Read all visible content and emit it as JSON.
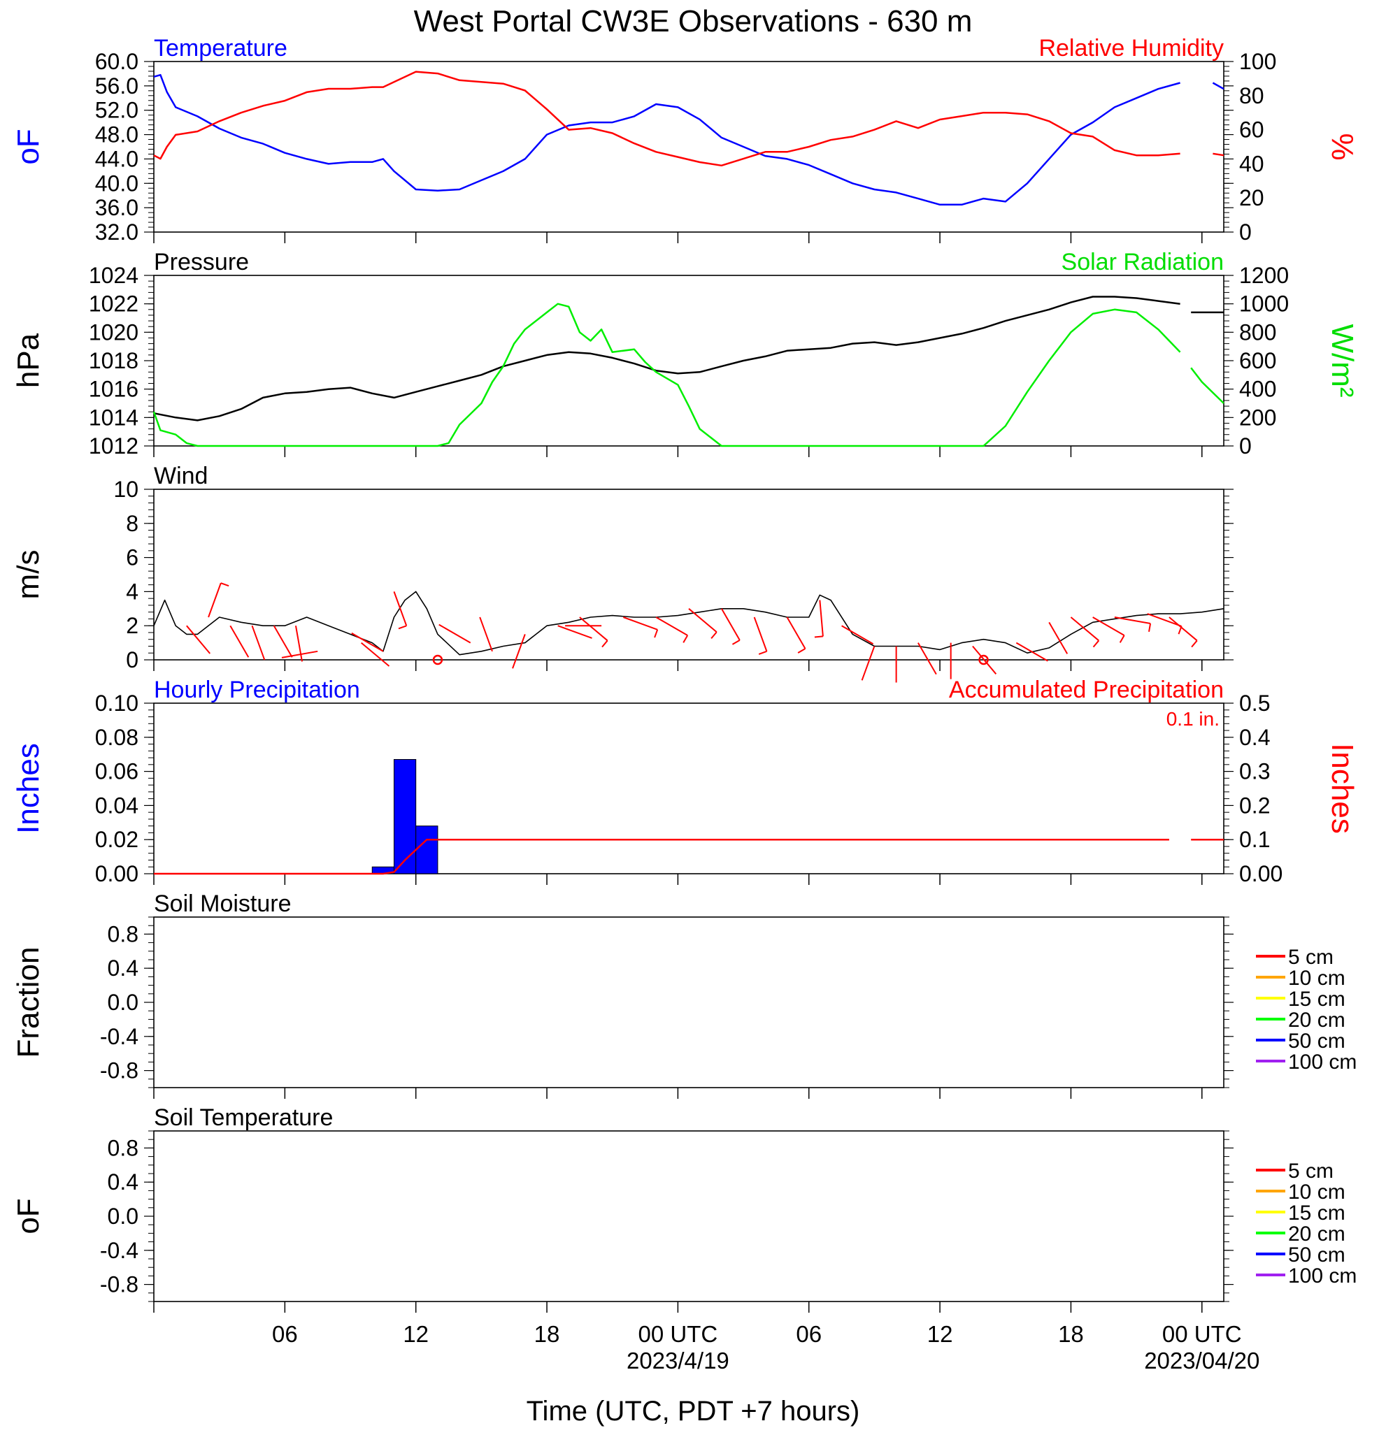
{
  "title": "West Portal CW3E Observations - 630 m",
  "time_axis": {
    "label": "Time (UTC, PDT +7 hours)",
    "ticks": [
      {
        "h": 6,
        "label": "06",
        "sub": ""
      },
      {
        "h": 12,
        "label": "12",
        "sub": ""
      },
      {
        "h": 18,
        "label": "18",
        "sub": ""
      },
      {
        "h": 24,
        "label": "00 UTC",
        "sub": "2023/4/19"
      },
      {
        "h": 30,
        "label": "06",
        "sub": ""
      },
      {
        "h": 36,
        "label": "12",
        "sub": ""
      },
      {
        "h": 42,
        "label": "18",
        "sub": ""
      },
      {
        "h": 48,
        "label": "00 UTC",
        "sub": "2023/04/20"
      }
    ]
  },
  "colors": {
    "temp": "#0000ff",
    "rh": "#ff0000",
    "pressure": "#000000",
    "solar": "#00ee00",
    "wind": "#000000",
    "barb": "#ff0000",
    "hourly": "#0000ff",
    "accum": "#ff0000"
  },
  "chart_data": [
    {
      "type": "line",
      "panel": "temperature-humidity",
      "left_title": "Temperature",
      "right_title": "Relative Humidity",
      "left_unit": "oF",
      "right_unit": "%",
      "left_ticks": [
        "60.0",
        "56.0",
        "52.0",
        "48.0",
        "44.0",
        "40.0",
        "36.0",
        "32.0"
      ],
      "right_ticks": [
        "100",
        "80",
        "60",
        "40",
        "20",
        "0"
      ],
      "ylim_left": [
        32,
        60
      ],
      "ylim_right": [
        0,
        100
      ],
      "x_hours": [
        0,
        0.3,
        0.6,
        1,
        2,
        3,
        4,
        5,
        6,
        7,
        8,
        9,
        10,
        10.5,
        11,
        12,
        13,
        14,
        15,
        16,
        17,
        18,
        19,
        20,
        21,
        22,
        23,
        24,
        25,
        26,
        27,
        28,
        29,
        30,
        31,
        32,
        33,
        34,
        35,
        36,
        37,
        38,
        39,
        40,
        41,
        42,
        43,
        44,
        45,
        46,
        47,
        48,
        48.5,
        49
      ],
      "series": [
        {
          "name": "Temperature",
          "axis": "left",
          "color": "#0000ff",
          "values": [
            57.5,
            57.8,
            55,
            52.5,
            51,
            49,
            47.5,
            46.5,
            45,
            44,
            43.2,
            43.5,
            43.5,
            44,
            42,
            39,
            38.8,
            39,
            40.5,
            42,
            44,
            48,
            49.5,
            50,
            50,
            51,
            53,
            52.5,
            50.5,
            47.5,
            46,
            44.5,
            44,
            43,
            41.5,
            40,
            39,
            38.5,
            37.5,
            36.5,
            36.5,
            37.5,
            37,
            40,
            44,
            48,
            50,
            52.5,
            54,
            55.5,
            56.5,
            null,
            56.5,
            55.5
          ]
        },
        {
          "name": "Relative Humidity",
          "axis": "right",
          "color": "#ff0000",
          "values": [
            45,
            43,
            50,
            57,
            59,
            65,
            70,
            74,
            77,
            82,
            84,
            84,
            85,
            85,
            88,
            94,
            93,
            89,
            88,
            87,
            83,
            72,
            60,
            61,
            58,
            52,
            47,
            44,
            41,
            39,
            43,
            47,
            47,
            50,
            54,
            56,
            60,
            65,
            61,
            66,
            68,
            70,
            70,
            69,
            65,
            58,
            56,
            48,
            45,
            45,
            46,
            null,
            46,
            45
          ]
        }
      ]
    },
    {
      "type": "line",
      "panel": "pressure-solar",
      "left_title": "Pressure",
      "right_title": "Solar Radiation",
      "left_unit": "hPa",
      "right_unit": "W/m²",
      "left_ticks": [
        "1024",
        "1022",
        "1020",
        "1018",
        "1016",
        "1014",
        "1012"
      ],
      "right_ticks": [
        "1200",
        "1000",
        "800",
        "600",
        "400",
        "200",
        "0"
      ],
      "ylim_left": [
        1012,
        1024
      ],
      "ylim_right": [
        0,
        1200
      ],
      "series": [
        {
          "name": "Pressure",
          "axis": "left",
          "color": "#000000",
          "x": [
            0,
            1,
            2,
            3,
            4,
            5,
            6,
            7,
            8,
            9,
            10,
            11,
            12,
            13,
            14,
            15,
            16,
            17,
            18,
            19,
            20,
            21,
            22,
            23,
            24,
            25,
            26,
            27,
            28,
            29,
            30,
            31,
            32,
            33,
            34,
            35,
            36,
            37,
            38,
            39,
            40,
            41,
            42,
            43,
            44,
            45,
            46,
            47,
            null,
            47.5,
            48,
            49
          ],
          "values": [
            1014.3,
            1014.0,
            1013.8,
            1014.1,
            1014.6,
            1015.4,
            1015.7,
            1015.8,
            1016.0,
            1016.1,
            1015.7,
            1015.4,
            1015.8,
            1016.2,
            1016.6,
            1017.0,
            1017.6,
            1018.0,
            1018.4,
            1018.6,
            1018.5,
            1018.2,
            1017.8,
            1017.3,
            1017.1,
            1017.2,
            1017.6,
            1018.0,
            1018.3,
            1018.7,
            1018.8,
            1018.9,
            1019.2,
            1019.3,
            1019.1,
            1019.3,
            1019.6,
            1019.9,
            1020.3,
            1020.8,
            1021.2,
            1021.6,
            1022.1,
            1022.5,
            1022.5,
            1022.4,
            1022.2,
            1022.0,
            null,
            1021.4,
            1021.4,
            1021.4
          ]
        },
        {
          "name": "Solar Radiation",
          "axis": "right",
          "color": "#00ee00",
          "x": [
            0,
            0.3,
            1,
            1.5,
            2,
            3,
            4,
            5,
            6,
            7,
            8,
            9,
            10,
            11,
            12,
            13,
            13.5,
            14,
            15,
            15.5,
            16,
            16.5,
            17,
            18,
            18.5,
            19,
            19.5,
            20,
            20.5,
            21,
            22,
            22.5,
            23,
            24,
            24.5,
            25,
            26,
            27,
            28,
            29,
            30,
            31,
            32,
            33,
            34,
            35,
            36,
            37,
            38,
            39,
            40,
            41,
            42,
            43,
            44,
            45,
            46,
            47,
            null,
            47.5,
            48,
            49
          ],
          "values": [
            240,
            110,
            80,
            20,
            0,
            0,
            0,
            0,
            0,
            0,
            0,
            0,
            0,
            0,
            0,
            0,
            20,
            150,
            300,
            450,
            560,
            720,
            820,
            940,
            1000,
            980,
            800,
            740,
            820,
            660,
            680,
            590,
            520,
            430,
            280,
            120,
            0,
            0,
            0,
            0,
            0,
            0,
            0,
            0,
            0,
            0,
            0,
            0,
            0,
            140,
            380,
            600,
            800,
            930,
            960,
            940,
            820,
            660,
            null,
            550,
            450,
            300
          ]
        }
      ]
    },
    {
      "type": "line",
      "panel": "wind",
      "left_title": "Wind",
      "left_unit": "m/s",
      "left_ticks": [
        "10",
        "8",
        "6",
        "4",
        "2",
        "0"
      ],
      "ylim_left": [
        0,
        10
      ],
      "series": [
        {
          "name": "Wind",
          "color": "#000000",
          "x": [
            0,
            0.5,
            1,
            1.5,
            2,
            3,
            4,
            5,
            6,
            7,
            8,
            9,
            10,
            10.5,
            11,
            11.5,
            12,
            12.5,
            13,
            14,
            15,
            16,
            17,
            18,
            19,
            20,
            21,
            22,
            23,
            24,
            25,
            26,
            27,
            28,
            29,
            30,
            30.5,
            31,
            32,
            33,
            34,
            35,
            36,
            37,
            38,
            39,
            40,
            41,
            42,
            43,
            44,
            45,
            46,
            47,
            48,
            49
          ],
          "values": [
            2.0,
            3.5,
            2.0,
            1.5,
            1.5,
            2.5,
            2.2,
            2.0,
            2.0,
            2.5,
            2.0,
            1.5,
            1.0,
            0.5,
            2.5,
            3.5,
            4.0,
            3.0,
            1.5,
            0.3,
            0.5,
            0.8,
            1.0,
            2.0,
            2.2,
            2.5,
            2.6,
            2.5,
            2.5,
            2.6,
            2.8,
            3.0,
            3.0,
            2.8,
            2.5,
            2.5,
            3.8,
            3.5,
            1.5,
            0.8,
            0.8,
            0.8,
            0.6,
            1.0,
            1.2,
            1.0,
            0.4,
            0.7,
            1.5,
            2.2,
            2.4,
            2.6,
            2.7,
            2.7,
            2.8,
            3.0
          ]
        }
      ],
      "barbs": [
        {
          "h": 1.5,
          "spd": 2.0,
          "dir": 140
        },
        {
          "h": 2.5,
          "spd": 2.5,
          "dir": 20
        },
        {
          "h": 3.5,
          "spd": 2.0,
          "dir": 150
        },
        {
          "h": 4.5,
          "spd": 2.0,
          "dir": 160
        },
        {
          "h": 5.5,
          "spd": 2.0,
          "dir": 150
        },
        {
          "h": 6.5,
          "spd": 2.0,
          "dir": 170
        },
        {
          "h": 7.5,
          "spd": 0.5,
          "dir": 260
        },
        {
          "h": 9.5,
          "spd": 1.0,
          "dir": 130
        },
        {
          "h": 10.5,
          "spd": 0.5,
          "dir": 300
        },
        {
          "h": 11,
          "spd": 4.0,
          "dir": 160
        },
        {
          "h": 13,
          "spd": 0,
          "dir": 0
        },
        {
          "h": 14.5,
          "spd": 1.0,
          "dir": 300
        },
        {
          "h": 15.5,
          "spd": 0.5,
          "dir": 340
        },
        {
          "h": 17,
          "spd": 1.5,
          "dir": 200
        },
        {
          "h": 18.5,
          "spd": 2.0,
          "dir": 110
        },
        {
          "h": 19.5,
          "spd": 2.5,
          "dir": 130
        },
        {
          "h": 20.5,
          "spd": 2.0,
          "dir": 270
        },
        {
          "h": 21.5,
          "spd": 2.5,
          "dir": 110
        },
        {
          "h": 23,
          "spd": 2.5,
          "dir": 120
        },
        {
          "h": 24.5,
          "spd": 3.0,
          "dir": 130
        },
        {
          "h": 26,
          "spd": 3.0,
          "dir": 150
        },
        {
          "h": 27.5,
          "spd": 2.5,
          "dir": 160
        },
        {
          "h": 29,
          "spd": 2.5,
          "dir": 150
        },
        {
          "h": 30.5,
          "spd": 3.5,
          "dir": 175
        },
        {
          "h": 31.5,
          "spd": 2.0,
          "dir": 120
        },
        {
          "h": 33,
          "spd": 0.8,
          "dir": 200
        },
        {
          "h": 34,
          "spd": 0.8,
          "dir": 180
        },
        {
          "h": 35,
          "spd": 1.0,
          "dir": 150
        },
        {
          "h": 36.5,
          "spd": 1.0,
          "dir": 180
        },
        {
          "h": 37.5,
          "spd": 0.8,
          "dir": 140
        },
        {
          "h": 38,
          "spd": 0,
          "dir": 0
        },
        {
          "h": 39.5,
          "spd": 1.0,
          "dir": 120
        },
        {
          "h": 41,
          "spd": 2.2,
          "dir": 150
        },
        {
          "h": 42,
          "spd": 2.5,
          "dir": 130
        },
        {
          "h": 43,
          "spd": 2.5,
          "dir": 120
        },
        {
          "h": 44,
          "spd": 2.5,
          "dir": 100
        },
        {
          "h": 45.5,
          "spd": 2.7,
          "dir": 110
        },
        {
          "h": 46.5,
          "spd": 2.5,
          "dir": 130
        }
      ]
    },
    {
      "type": "bar",
      "panel": "precipitation",
      "left_title": "Hourly Precipitation",
      "right_title": "Accumulated Precipitation",
      "left_unit": "Inches",
      "right_unit": "Inches",
      "total_label": "0.1 in.",
      "left_ticks": [
        "0.10",
        "0.08",
        "0.06",
        "0.04",
        "0.02",
        "0.00"
      ],
      "right_ticks": [
        "0.5",
        "0.4",
        "0.3",
        "0.2",
        "0.1",
        "0.00"
      ],
      "ylim_left": [
        0,
        0.1
      ],
      "ylim_right": [
        0,
        0.5
      ],
      "hourly": [
        {
          "h": 10,
          "value": 0.004
        },
        {
          "h": 11,
          "value": 0.067
        },
        {
          "h": 12,
          "value": 0.028
        }
      ],
      "accumulated": {
        "x": [
          0,
          10.5,
          11,
          11.5,
          12,
          12.5,
          13,
          46.5,
          null,
          47.5,
          49
        ],
        "values": [
          0,
          0,
          0.005,
          0.04,
          0.07,
          0.1,
          0.1,
          0.1,
          null,
          0.1,
          0.1
        ]
      }
    },
    {
      "type": "line",
      "panel": "soil-moisture",
      "left_title": "Soil Moisture",
      "left_unit": "Fraction",
      "left_ticks": [
        "0.8",
        "0.4",
        "0.0",
        "-0.4",
        "-0.8"
      ],
      "ylim_left": [
        -1,
        1
      ],
      "legend": [
        {
          "label": "5 cm",
          "color": "#ff0000"
        },
        {
          "label": "10 cm",
          "color": "#ffa500"
        },
        {
          "label": "15 cm",
          "color": "#ffff00"
        },
        {
          "label": "20 cm",
          "color": "#00ff00"
        },
        {
          "label": "50 cm",
          "color": "#0000ff"
        },
        {
          "label": "100 cm",
          "color": "#a020f0"
        }
      ],
      "series": []
    },
    {
      "type": "line",
      "panel": "soil-temperature",
      "left_title": "Soil Temperature",
      "left_unit": "oF",
      "left_ticks": [
        "0.8",
        "0.4",
        "0.0",
        "-0.4",
        "-0.8"
      ],
      "ylim_left": [
        -1,
        1
      ],
      "legend": [
        {
          "label": "5 cm",
          "color": "#ff0000"
        },
        {
          "label": "10 cm",
          "color": "#ffa500"
        },
        {
          "label": "15 cm",
          "color": "#ffff00"
        },
        {
          "label": "20 cm",
          "color": "#00ff00"
        },
        {
          "label": "50 cm",
          "color": "#0000ff"
        },
        {
          "label": "100 cm",
          "color": "#a020f0"
        }
      ],
      "series": []
    }
  ]
}
